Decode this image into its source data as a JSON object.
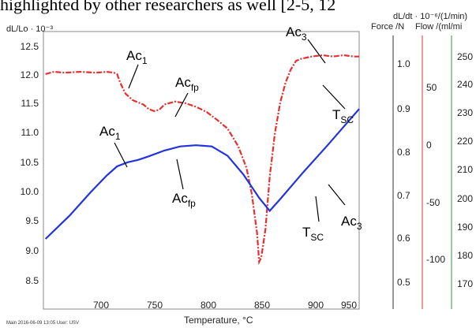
{
  "caption": "highlighted by other researchers as well [2-5, 12",
  "chart_data": {
    "type": "line",
    "title": "",
    "xlabel": "Temperature, °C",
    "x_ticks": [
      "700",
      "750",
      "800",
      "850",
      "900",
      "950"
    ],
    "xlim": [
      655,
      955
    ],
    "left_axis": {
      "label": "dL/Lo · 10⁻³",
      "ylim": [
        8.3,
        12.6
      ],
      "ticks": [
        "12.5",
        "12.0",
        "11.5",
        "11.0",
        "10.5",
        "10.0",
        "9.5",
        "9.0",
        "8.5"
      ]
    },
    "right_axes": [
      {
        "label": "dL/dt · 10⁻⁶/(1/min)",
        "ticks": [
          "1.0",
          "0.9",
          "0.8",
          "0.7",
          "0.6",
          "0.5"
        ],
        "color": "#222222"
      },
      {
        "label": "Force /N",
        "ticks": [
          "50",
          "0",
          "-50",
          "-100"
        ],
        "color": "#e03030"
      },
      {
        "label": "Flow /(ml/mi",
        "ticks": [
          "250",
          "240",
          "230",
          "220",
          "210",
          "200",
          "190",
          "180",
          "170"
        ],
        "color": "#2a9a3a"
      }
    ],
    "series": [
      {
        "color": "#2233dd",
        "style": "solid",
        "axis": "left",
        "x": [
          657,
          680,
          700,
          715,
          725,
          735,
          745,
          755,
          770,
          785,
          800,
          815,
          830,
          845,
          860,
          870,
          880,
          900,
          925,
          955
        ],
        "y": [
          9.2,
          9.6,
          10.0,
          10.28,
          10.44,
          10.51,
          10.55,
          10.61,
          10.71,
          10.78,
          10.8,
          10.78,
          10.62,
          10.3,
          9.9,
          9.68,
          9.88,
          10.3,
          10.8,
          11.42
        ]
      },
      {
        "color": "#e53030",
        "style": "dash-dot",
        "axis": "right-dLdt",
        "x": [
          657,
          665,
          675,
          690,
          705,
          715,
          722,
          725,
          728,
          733,
          740,
          750,
          755,
          760,
          765,
          770,
          780,
          790,
          800,
          810,
          820,
          830,
          840,
          848,
          853,
          858,
          860,
          862,
          866,
          870,
          875,
          880,
          885,
          890,
          895,
          900,
          910,
          920,
          930,
          940,
          950,
          955
        ],
        "y": [
          0.975,
          0.98,
          0.978,
          0.98,
          0.978,
          0.98,
          0.978,
          0.975,
          0.955,
          0.93,
          0.915,
          0.905,
          0.895,
          0.89,
          0.893,
          0.905,
          0.912,
          0.908,
          0.9,
          0.888,
          0.87,
          0.85,
          0.81,
          0.76,
          0.7,
          0.61,
          0.545,
          0.555,
          0.62,
          0.74,
          0.84,
          0.91,
          0.955,
          0.985,
          1.005,
          1.01,
          1.015,
          1.018,
          1.015,
          1.018,
          1.015,
          1.015
        ]
      }
    ],
    "annotations": [
      {
        "main": "Ac",
        "sub": "1"
      },
      {
        "main": "Ac",
        "sub": "fp"
      },
      {
        "main": "Ac",
        "sub": "3"
      },
      {
        "main": "T",
        "sub": "SC"
      },
      {
        "main": "Ac",
        "sub": "1"
      },
      {
        "main": "Ac",
        "sub": "fp"
      },
      {
        "main": "T",
        "sub": "SC"
      },
      {
        "main": "Ac",
        "sub": "3"
      }
    ],
    "footer": {
      "left": "Main   2016-06-09 13:05   User: USV"
    }
  }
}
